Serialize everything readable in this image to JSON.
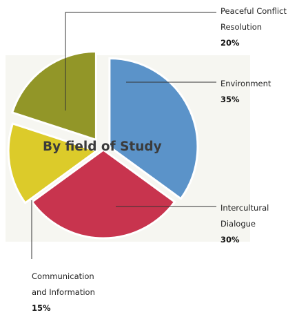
{
  "chart_data": {
    "type": "pie",
    "title": "By field of Study",
    "slices": [
      {
        "label_lines": [
          "Environment"
        ],
        "value": 35,
        "value_label": "35%",
        "color": "#5b93c9"
      },
      {
        "label_lines": [
          "Intercultural",
          "Dialogue"
        ],
        "value": 30,
        "value_label": "30%",
        "color": "#c8344e"
      },
      {
        "label_lines": [
          "Communication",
          "and Information"
        ],
        "value": 15,
        "value_label": "15%",
        "color": "#dccb2a"
      },
      {
        "label_lines": [
          "Peaceful Conflict",
          "Resolution"
        ],
        "value": 20,
        "value_label": "20%",
        "color": "#929628"
      }
    ],
    "background_color": "#f6f6f1"
  }
}
